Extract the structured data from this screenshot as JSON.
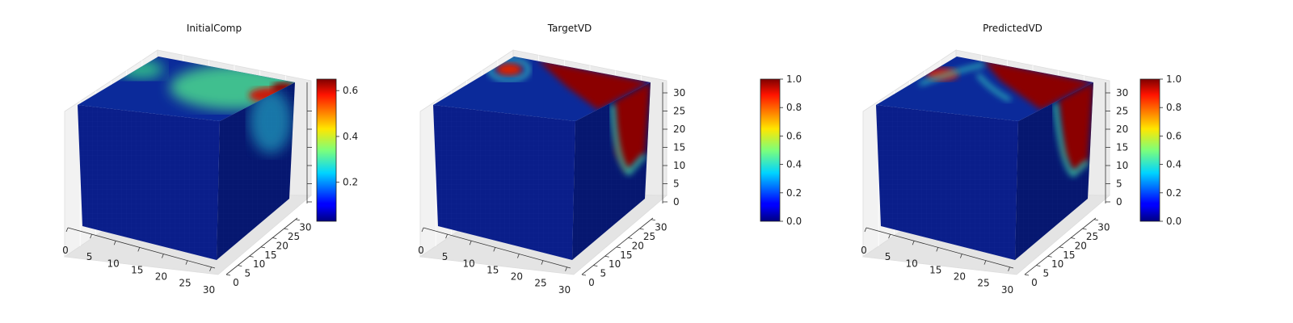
{
  "chart_data": [
    {
      "type": "3d-voxel",
      "title": "InitialComp",
      "colormap": "jet",
      "x_ticks": [
        "0",
        "5",
        "10",
        "15",
        "20",
        "25",
        "30"
      ],
      "y_ticks": [
        "0",
        "5",
        "10",
        "15",
        "20",
        "25",
        "30"
      ],
      "z_ticks": [],
      "colorbar": {
        "ticks": [
          "0.2",
          "0.4",
          "0.6"
        ],
        "range": [
          0.03,
          0.65
        ]
      }
    },
    {
      "type": "3d-voxel",
      "title": "TargetVD",
      "colormap": "jet",
      "x_ticks": [
        "0",
        "5",
        "10",
        "15",
        "20",
        "25",
        "30"
      ],
      "y_ticks": [
        "0",
        "5",
        "10",
        "15",
        "20",
        "25",
        "30"
      ],
      "z_ticks": [
        "0",
        "5",
        "10",
        "15",
        "20",
        "25",
        "30"
      ],
      "colorbar": {
        "ticks": [
          "0.0",
          "0.2",
          "0.4",
          "0.6",
          "0.8",
          "1.0"
        ],
        "range": [
          0,
          1
        ]
      }
    },
    {
      "type": "3d-voxel",
      "title": "PredictedVD",
      "colormap": "jet",
      "x_ticks": [
        "0",
        "5",
        "10",
        "15",
        "20",
        "25",
        "30"
      ],
      "y_ticks": [
        "0",
        "5",
        "10",
        "15",
        "20",
        "25",
        "30"
      ],
      "z_ticks": [
        "0",
        "5",
        "10",
        "15",
        "20",
        "25",
        "30"
      ],
      "colorbar": {
        "ticks": [
          "0.0",
          "0.2",
          "0.4",
          "0.6",
          "0.8",
          "1.0"
        ],
        "range": [
          0,
          1
        ]
      }
    }
  ],
  "colors": {
    "cube_front": "#0a1e8a",
    "cube_side": "#061770",
    "hot": "#8b0000",
    "mid": "#3fbf8f"
  }
}
